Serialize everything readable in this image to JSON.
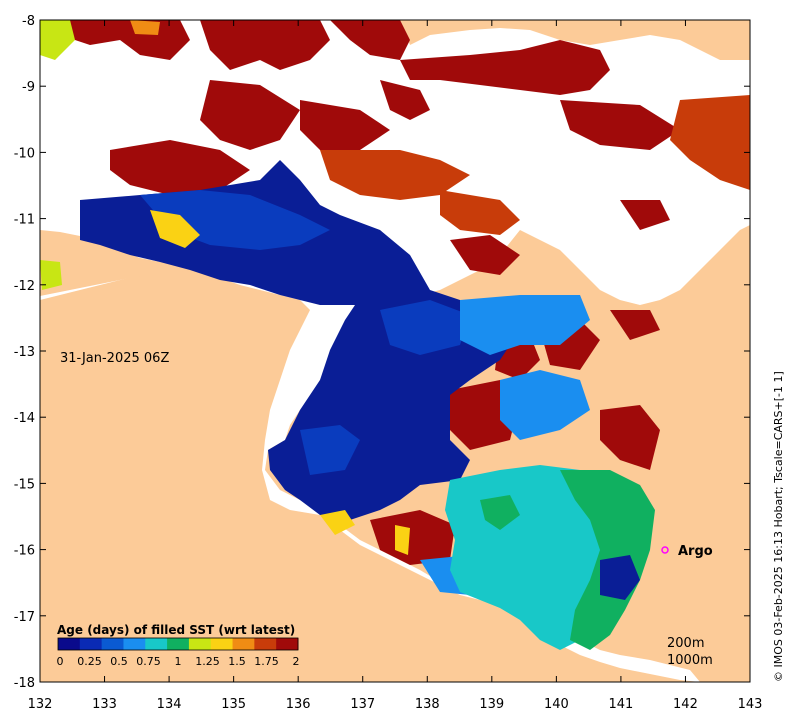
{
  "map": {
    "x_ticks": [
      "132",
      "133",
      "134",
      "135",
      "136",
      "137",
      "138",
      "139",
      "140",
      "141",
      "142",
      "143"
    ],
    "y_ticks": [
      "-8",
      "-9",
      "-10",
      "-11",
      "-12",
      "-13",
      "-14",
      "-15",
      "-16",
      "-17",
      "-18"
    ],
    "timestamp": "31-Jan-2025 06Z",
    "argo_label": "Argo",
    "depth_labels": [
      "200m",
      "1000m"
    ],
    "credit": "© IMOS 03-Feb-2025 16:13 Hobart; Tscale=CARS+[-1 1]",
    "colorbar": {
      "title": "Age (days) of filled SST (wrt latest)",
      "ticks": [
        "0",
        "0.25",
        "0.5",
        "0.75",
        "1",
        "1.25",
        "1.5",
        "1.75",
        "2"
      ],
      "colors": [
        "#0a0a8c",
        "#0a2ab4",
        "#0a5ad2",
        "#1a8ef0",
        "#18c8c8",
        "#10b060",
        "#c8e614",
        "#fad214",
        "#f08c14",
        "#c83c0a",
        "#a00a0a"
      ]
    },
    "colors": {
      "land": "#fccb98",
      "no_data": "#ffffff",
      "argo_marker": "#ff00ff"
    }
  }
}
